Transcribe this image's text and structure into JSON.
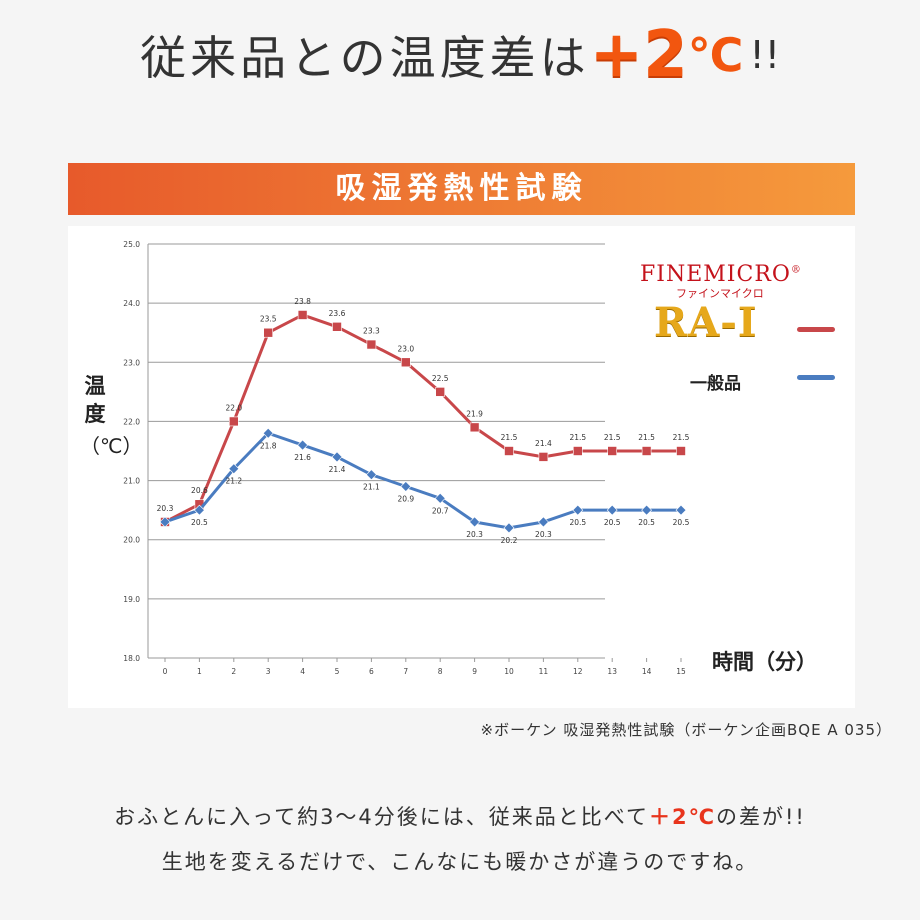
{
  "headline": {
    "text": "従来品との温度差は",
    "highlight": "+2",
    "unit": "℃",
    "suffix": "!!"
  },
  "banner": {
    "title": "吸湿発熱性試験"
  },
  "logo": {
    "brand": "FINEMICRO",
    "reg": "®",
    "kana": "ファインマイクロ",
    "product": "RA-I"
  },
  "legend": {
    "general_label": "一般品"
  },
  "source_note": "※ボーケン 吸湿発熱性試験（ボーケン企画BQE A 035）",
  "body": {
    "line1_a": "おふとんに入って約3〜4分後には、従来品と比べて",
    "line1_hl": "＋2℃",
    "line1_b": "の差が!!",
    "line2": "生地を変えるだけで、こんなにも暖かさが違うのですね。"
  },
  "colors": {
    "rai": "#c8474a",
    "general": "#4a7cc0",
    "accent": "#f2560f",
    "banner_start": "#e75a2b",
    "banner_end": "#f59a3c"
  },
  "chart_data": {
    "type": "line",
    "ylabel_chars": [
      "温",
      "度"
    ],
    "yunit": "（℃）",
    "xlabel": "時間（分）",
    "ylim": [
      18.0,
      25.0
    ],
    "yticks": [
      "18.0",
      "19.0",
      "20.0",
      "21.0",
      "22.0",
      "23.0",
      "24.0",
      "25.0"
    ],
    "grid": true,
    "x": [
      0,
      1,
      2,
      3,
      4,
      5,
      6,
      7,
      8,
      9,
      10,
      11,
      12,
      13,
      14,
      15
    ],
    "series": [
      {
        "name": "RA-I",
        "color": "#c8474a",
        "marker": "square",
        "values": [
          20.3,
          20.6,
          22.0,
          23.5,
          23.8,
          23.6,
          23.3,
          23.0,
          22.5,
          21.9,
          21.5,
          21.4,
          21.5,
          21.5,
          21.5,
          21.5
        ],
        "labels": [
          "20.3",
          "20.6",
          "22.0",
          "23.5",
          "23.8",
          "23.6",
          "23.3",
          "23.0",
          "22.5",
          "21.9",
          "21.5",
          "21.4",
          "21.5",
          "21.5",
          "21.5",
          "21.5"
        ]
      },
      {
        "name": "一般品",
        "color": "#4a7cc0",
        "marker": "diamond",
        "values": [
          20.3,
          20.5,
          21.2,
          21.8,
          21.6,
          21.4,
          21.1,
          20.9,
          20.7,
          20.3,
          20.2,
          20.3,
          20.5,
          20.5,
          20.5,
          20.5
        ],
        "labels": [
          "",
          "20.5",
          "21.2",
          "21.8",
          "21.6",
          "21.4",
          "21.1",
          "20.9",
          "20.7",
          "20.3",
          "20.2",
          "20.3",
          "20.5",
          "20.5",
          "20.5",
          "20.5"
        ]
      }
    ]
  }
}
